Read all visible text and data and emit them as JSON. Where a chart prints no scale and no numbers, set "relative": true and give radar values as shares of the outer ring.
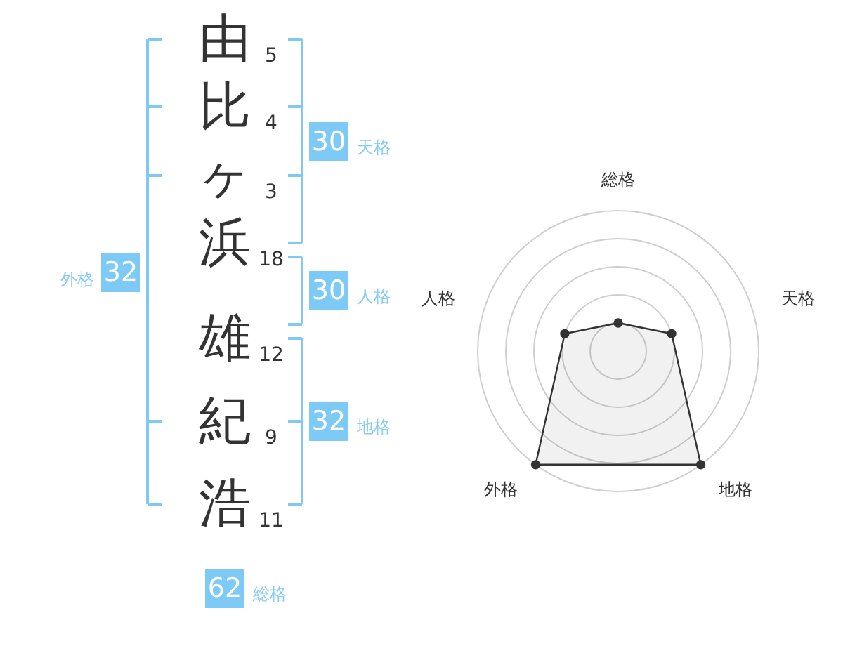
{
  "chart_data": [
    {
      "type": "other",
      "categories": [
        "由",
        "比",
        "ヶ",
        "浜",
        "雄",
        "紀",
        "浩"
      ],
      "values": [
        5,
        4,
        3,
        18,
        12,
        9,
        11
      ],
      "data_labels": true,
      "annotations": [
        "30",
        "天格",
        "30",
        "人格",
        "32",
        "地格",
        "32",
        "外格",
        "62",
        "総格"
      ]
    },
    {
      "type": "radar",
      "categories": [
        "総格",
        "天格",
        "地格",
        "外格",
        "人格"
      ],
      "relative": true,
      "series": [
        {
          "color": "#333333",
          "values": [
            0.2,
            0.4,
            1,
            1,
            0.4
          ]
        }
      ],
      "grid": true,
      "marker": "circle"
    }
  ]
}
